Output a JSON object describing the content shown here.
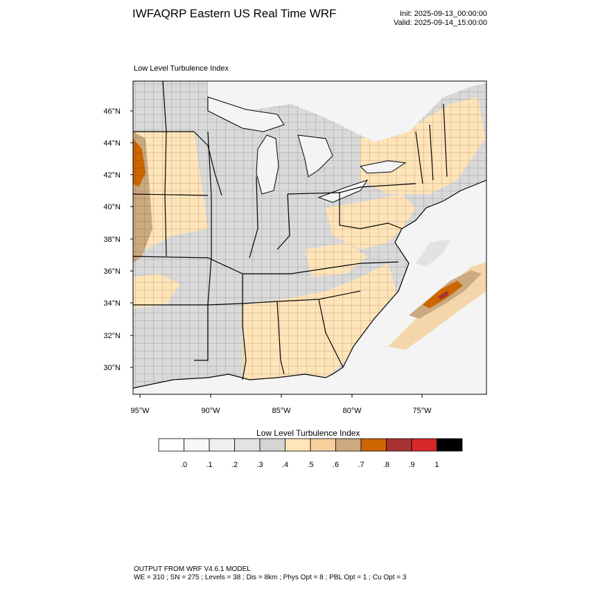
{
  "header": {
    "title": "IWFAQRP Eastern US Real Time WRF",
    "init": "Init: 2025-09-13_00:00:00",
    "valid": "Valid: 2025-09-14_15:00:00"
  },
  "map": {
    "subtitle": "Low Level Turbulence Index",
    "lat_labels": [
      "46°N",
      "44°N",
      "42°N",
      "40°N",
      "38°N",
      "36°N",
      "34°N",
      "32°N",
      "30°N"
    ],
    "lon_labels": [
      "95°W",
      "90°W",
      "85°W",
      "80°W",
      "75°W"
    ],
    "colors": {
      "land_low": "#d9d9d9",
      "land_mid": "#ffe4b8",
      "water": "#f2f2f2",
      "moderate": "#ccaa80",
      "high": "#cc6600",
      "very_high": "#a83232",
      "boundary": "#000000"
    }
  },
  "colorbar": {
    "title": "Low Level Turbulence Index",
    "colors": [
      "#ffffff",
      "#f7f7f7",
      "#efefef",
      "#e2e2e2",
      "#d4d4d4",
      "#ffe4b8",
      "#f5cf9c",
      "#ccaa80",
      "#cc6600",
      "#a83232",
      "#d62828",
      "#000000"
    ],
    "labels": [
      ".0",
      ".1",
      ".2",
      ".3",
      ".4",
      ".5",
      ".6",
      ".7",
      ".8",
      ".9",
      "1"
    ]
  },
  "footer": {
    "line1": "OUTPUT FROM WRF V4.6.1 MODEL",
    "line2": "WE = 310 ; SN = 275 ; Levels = 38 ; Dis = 8km ; Phys Opt = 8 ; PBL Opt = 1 ; Cu Opt = 3"
  }
}
